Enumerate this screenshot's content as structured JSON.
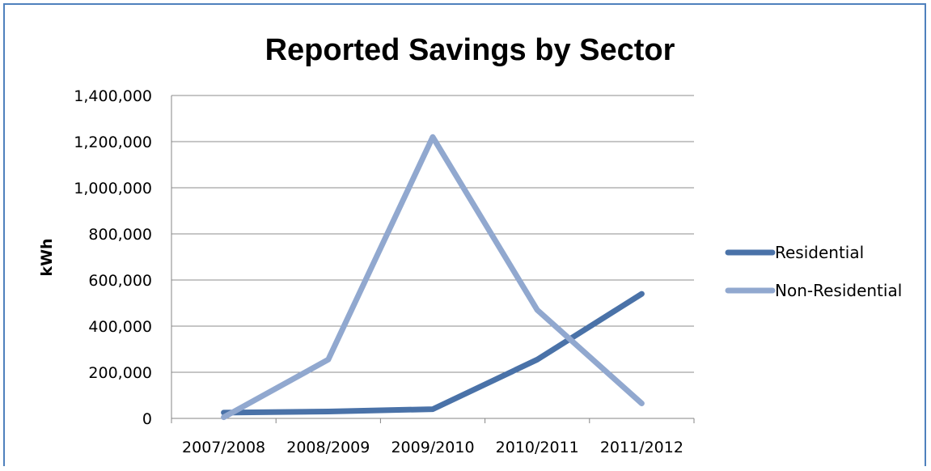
{
  "chart_data": {
    "type": "line",
    "title": "Reported Savings by Sector",
    "xlabel": "",
    "ylabel": "kWh",
    "categories": [
      "2007/2008",
      "2008/2009",
      "2009/2010",
      "2010/2011",
      "2011/2012"
    ],
    "ylim": [
      0,
      1400000
    ],
    "yticks": [
      0,
      200000,
      400000,
      600000,
      800000,
      1000000,
      1200000,
      1400000
    ],
    "ytick_labels": [
      "0",
      "200,000",
      "400,000",
      "600,000",
      "800,000",
      "1,000,000",
      "1,200,000",
      "1,400,000"
    ],
    "grid": true,
    "legend_position": "right",
    "series": [
      {
        "name": "Residential",
        "color": "#4a72a8",
        "values": [
          25000,
          30000,
          40000,
          255000,
          540000
        ]
      },
      {
        "name": "Non-Residential",
        "color": "#91a8cf",
        "values": [
          5000,
          255000,
          1220000,
          470000,
          65000
        ]
      }
    ]
  }
}
